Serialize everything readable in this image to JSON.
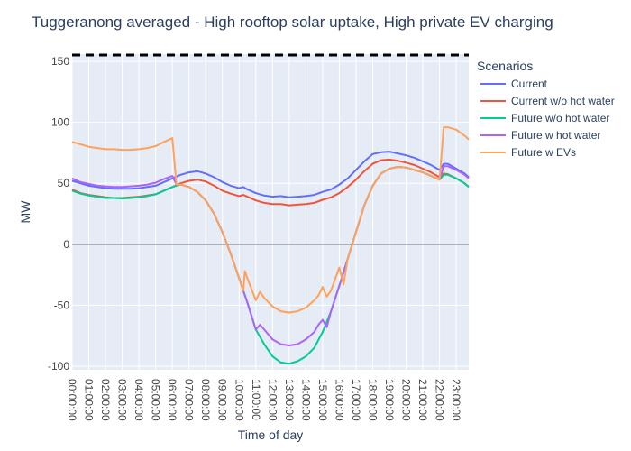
{
  "chart_data": {
    "type": "line",
    "title": "Tuggeranong averaged - High rooftop solar uptake, High private EV charging",
    "xlabel": "Time of day",
    "ylabel": "MW",
    "xlim": [
      0,
      23.75
    ],
    "ylim": [
      -103,
      156
    ],
    "yticks": [
      -100,
      -50,
      0,
      50,
      100,
      150
    ],
    "xticks": [
      "00:00:00",
      "01:00:00",
      "02:00:00",
      "03:00:00",
      "04:00:00",
      "05:00:00",
      "06:00:00",
      "07:00:00",
      "08:00:00",
      "09:00:00",
      "10:00:00",
      "11:00:00",
      "12:00:00",
      "13:00:00",
      "14:00:00",
      "15:00:00",
      "16:00:00",
      "17:00:00",
      "18:00:00",
      "19:00:00",
      "20:00:00",
      "21:00:00",
      "22:00:00",
      "23:00:00"
    ],
    "reference_line_y": 156,
    "legend_title": "Scenarios",
    "legend_position": "right",
    "grid": true,
    "series": [
      {
        "name": "Current",
        "color": "#636efa",
        "points": [
          [
            0,
            52
          ],
          [
            0.5,
            50
          ],
          [
            1,
            48
          ],
          [
            1.5,
            47
          ],
          [
            2,
            46
          ],
          [
            2.5,
            45.5
          ],
          [
            3,
            45.5
          ],
          [
            3.5,
            45.5
          ],
          [
            4,
            46
          ],
          [
            4.5,
            47
          ],
          [
            5,
            48
          ],
          [
            5.5,
            51
          ],
          [
            6,
            54
          ],
          [
            6.5,
            57
          ],
          [
            7,
            59
          ],
          [
            7.5,
            60
          ],
          [
            8,
            58
          ],
          [
            8.5,
            55
          ],
          [
            9,
            51
          ],
          [
            9.5,
            48
          ],
          [
            10,
            46
          ],
          [
            10.25,
            47
          ],
          [
            10.5,
            45
          ],
          [
            11,
            42
          ],
          [
            11.5,
            40
          ],
          [
            12,
            39
          ],
          [
            12.5,
            39.5
          ],
          [
            13,
            38.5
          ],
          [
            13.5,
            39
          ],
          [
            14,
            39.5
          ],
          [
            14.5,
            40.5
          ],
          [
            15,
            43
          ],
          [
            15.5,
            45
          ],
          [
            16,
            49
          ],
          [
            16.5,
            54
          ],
          [
            17,
            61
          ],
          [
            17.5,
            68
          ],
          [
            18,
            74
          ],
          [
            18.5,
            75.5
          ],
          [
            19,
            76
          ],
          [
            19.5,
            74.5
          ],
          [
            20,
            73
          ],
          [
            20.5,
            71
          ],
          [
            21,
            68
          ],
          [
            21.5,
            65
          ],
          [
            22,
            61
          ],
          [
            22.25,
            66
          ],
          [
            22.5,
            66
          ],
          [
            23,
            62
          ],
          [
            23.5,
            58
          ],
          [
            23.75,
            55
          ]
        ]
      },
      {
        "name": "Current w/o hot water",
        "color": "#ef553b",
        "points": [
          [
            0,
            45
          ],
          [
            0.5,
            42
          ],
          [
            1,
            40.5
          ],
          [
            1.5,
            39.5
          ],
          [
            2,
            38.5
          ],
          [
            2.5,
            38
          ],
          [
            3,
            38
          ],
          [
            3.5,
            38.5
          ],
          [
            4,
            39
          ],
          [
            4.5,
            40
          ],
          [
            5,
            41
          ],
          [
            5.5,
            44
          ],
          [
            6,
            47
          ],
          [
            6.5,
            50
          ],
          [
            7,
            52
          ],
          [
            7.5,
            53
          ],
          [
            8,
            51.5
          ],
          [
            8.5,
            48
          ],
          [
            9,
            44
          ],
          [
            9.5,
            41.5
          ],
          [
            10,
            39.5
          ],
          [
            10.25,
            40.5
          ],
          [
            10.5,
            39
          ],
          [
            11,
            36
          ],
          [
            11.5,
            34
          ],
          [
            12,
            33
          ],
          [
            12.5,
            33
          ],
          [
            13,
            32
          ],
          [
            13.5,
            32.5
          ],
          [
            14,
            33
          ],
          [
            14.5,
            34
          ],
          [
            15,
            36.5
          ],
          [
            15.5,
            38.5
          ],
          [
            16,
            42
          ],
          [
            16.5,
            47
          ],
          [
            17,
            53
          ],
          [
            17.5,
            60
          ],
          [
            18,
            66
          ],
          [
            18.5,
            69
          ],
          [
            19,
            69.5
          ],
          [
            19.5,
            68.5
          ],
          [
            20,
            67
          ],
          [
            20.5,
            65
          ],
          [
            21,
            62
          ],
          [
            21.5,
            59
          ],
          [
            22,
            55
          ],
          [
            22.25,
            58
          ],
          [
            22.5,
            57.5
          ],
          [
            23,
            54
          ],
          [
            23.5,
            50
          ],
          [
            23.75,
            47
          ]
        ]
      },
      {
        "name": "Future w/o hot water",
        "color": "#00cc96",
        "points": [
          [
            0,
            44
          ],
          [
            0.5,
            41.5
          ],
          [
            1,
            40
          ],
          [
            1.5,
            39
          ],
          [
            2,
            38
          ],
          [
            2.5,
            38
          ],
          [
            3,
            37.5
          ],
          [
            3.5,
            38
          ],
          [
            4,
            38.5
          ],
          [
            4.5,
            39.5
          ],
          [
            5,
            41
          ],
          [
            5.5,
            44
          ],
          [
            6,
            47
          ],
          [
            6.5,
            49
          ],
          [
            7,
            47
          ],
          [
            7.5,
            43
          ],
          [
            8,
            36
          ],
          [
            8.5,
            25
          ],
          [
            9,
            10
          ],
          [
            9.5,
            -8
          ],
          [
            10,
            -28
          ],
          [
            10.5,
            -48
          ],
          [
            11,
            -70
          ],
          [
            11.5,
            -82
          ],
          [
            12,
            -92
          ],
          [
            12.5,
            -97
          ],
          [
            13,
            -98
          ],
          [
            13.5,
            -96
          ],
          [
            14,
            -92
          ],
          [
            14.5,
            -85
          ],
          [
            15,
            -72
          ],
          [
            15.5,
            -55
          ],
          [
            16,
            -34
          ],
          [
            16.5,
            -12
          ],
          [
            17,
            10
          ],
          [
            17.5,
            32
          ],
          [
            18,
            48
          ],
          [
            18.5,
            58
          ],
          [
            19,
            62
          ],
          [
            19.5,
            63.5
          ],
          [
            20,
            63
          ],
          [
            20.5,
            61
          ],
          [
            21,
            59
          ],
          [
            21.5,
            56
          ],
          [
            22,
            53
          ],
          [
            22.25,
            57
          ],
          [
            22.5,
            57
          ],
          [
            23,
            54
          ],
          [
            23.5,
            50
          ],
          [
            23.75,
            47
          ]
        ]
      },
      {
        "name": "Future w hot water",
        "color": "#ab63fa",
        "points": [
          [
            0,
            54
          ],
          [
            0.5,
            51
          ],
          [
            1,
            49.5
          ],
          [
            1.5,
            48
          ],
          [
            2,
            47.5
          ],
          [
            2.5,
            47
          ],
          [
            3,
            47
          ],
          [
            3.5,
            47.5
          ],
          [
            4,
            48
          ],
          [
            4.5,
            49
          ],
          [
            5,
            50.5
          ],
          [
            5.5,
            53.5
          ],
          [
            6,
            56
          ],
          [
            6.25,
            49
          ],
          [
            6.5,
            49
          ],
          [
            7,
            47
          ],
          [
            7.5,
            43
          ],
          [
            8,
            36
          ],
          [
            8.5,
            25
          ],
          [
            9,
            10
          ],
          [
            9.5,
            -8
          ],
          [
            10,
            -28
          ],
          [
            10.5,
            -48
          ],
          [
            11,
            -70
          ],
          [
            11.25,
            -66
          ],
          [
            11.5,
            -70
          ],
          [
            12,
            -78
          ],
          [
            12.5,
            -82
          ],
          [
            13,
            -83
          ],
          [
            13.5,
            -82
          ],
          [
            14,
            -78
          ],
          [
            14.5,
            -72
          ],
          [
            14.75,
            -66
          ],
          [
            15,
            -62
          ],
          [
            15.25,
            -68
          ],
          [
            15.5,
            -55
          ],
          [
            16,
            -34
          ],
          [
            16.5,
            -12
          ],
          [
            17,
            10
          ],
          [
            17.5,
            32
          ],
          [
            18,
            48
          ],
          [
            18.5,
            58
          ],
          [
            19,
            62
          ],
          [
            19.5,
            63.5
          ],
          [
            20,
            63
          ],
          [
            20.5,
            61
          ],
          [
            21,
            59
          ],
          [
            21.5,
            56
          ],
          [
            22,
            53
          ],
          [
            22.25,
            64
          ],
          [
            22.5,
            64
          ],
          [
            23,
            61
          ],
          [
            23.5,
            57
          ],
          [
            23.75,
            54
          ]
        ]
      },
      {
        "name": "Future w EVs",
        "color": "#ffa15a",
        "points": [
          [
            0,
            84
          ],
          [
            0.5,
            82
          ],
          [
            1,
            80
          ],
          [
            1.5,
            79
          ],
          [
            2,
            78
          ],
          [
            2.5,
            78
          ],
          [
            3,
            77.5
          ],
          [
            3.5,
            77.5
          ],
          [
            4,
            78
          ],
          [
            4.5,
            79
          ],
          [
            5,
            80.5
          ],
          [
            5.5,
            84
          ],
          [
            6,
            87
          ],
          [
            6.25,
            49
          ],
          [
            6.5,
            49
          ],
          [
            7,
            47
          ],
          [
            7.5,
            43
          ],
          [
            8,
            36
          ],
          [
            8.5,
            25
          ],
          [
            9,
            10
          ],
          [
            9.5,
            -8
          ],
          [
            10,
            -28
          ],
          [
            10.25,
            -38
          ],
          [
            10.35,
            -22
          ],
          [
            10.5,
            -28
          ],
          [
            11,
            -46
          ],
          [
            11.25,
            -39
          ],
          [
            11.5,
            -44
          ],
          [
            12,
            -51
          ],
          [
            12.5,
            -55
          ],
          [
            13,
            -56
          ],
          [
            13.5,
            -55
          ],
          [
            14,
            -52
          ],
          [
            14.5,
            -46
          ],
          [
            14.75,
            -42
          ],
          [
            15,
            -35
          ],
          [
            15.25,
            -43
          ],
          [
            15.5,
            -38
          ],
          [
            16,
            -19
          ],
          [
            16.25,
            -33
          ],
          [
            16.5,
            -12
          ],
          [
            17,
            10
          ],
          [
            17.5,
            32
          ],
          [
            18,
            48
          ],
          [
            18.5,
            58
          ],
          [
            19,
            62
          ],
          [
            19.5,
            63.5
          ],
          [
            20,
            63
          ],
          [
            20.5,
            61
          ],
          [
            21,
            59
          ],
          [
            21.5,
            56
          ],
          [
            22,
            53
          ],
          [
            22.25,
            96
          ],
          [
            22.5,
            96
          ],
          [
            23,
            94
          ],
          [
            23.5,
            89
          ],
          [
            23.75,
            86
          ]
        ]
      }
    ]
  }
}
